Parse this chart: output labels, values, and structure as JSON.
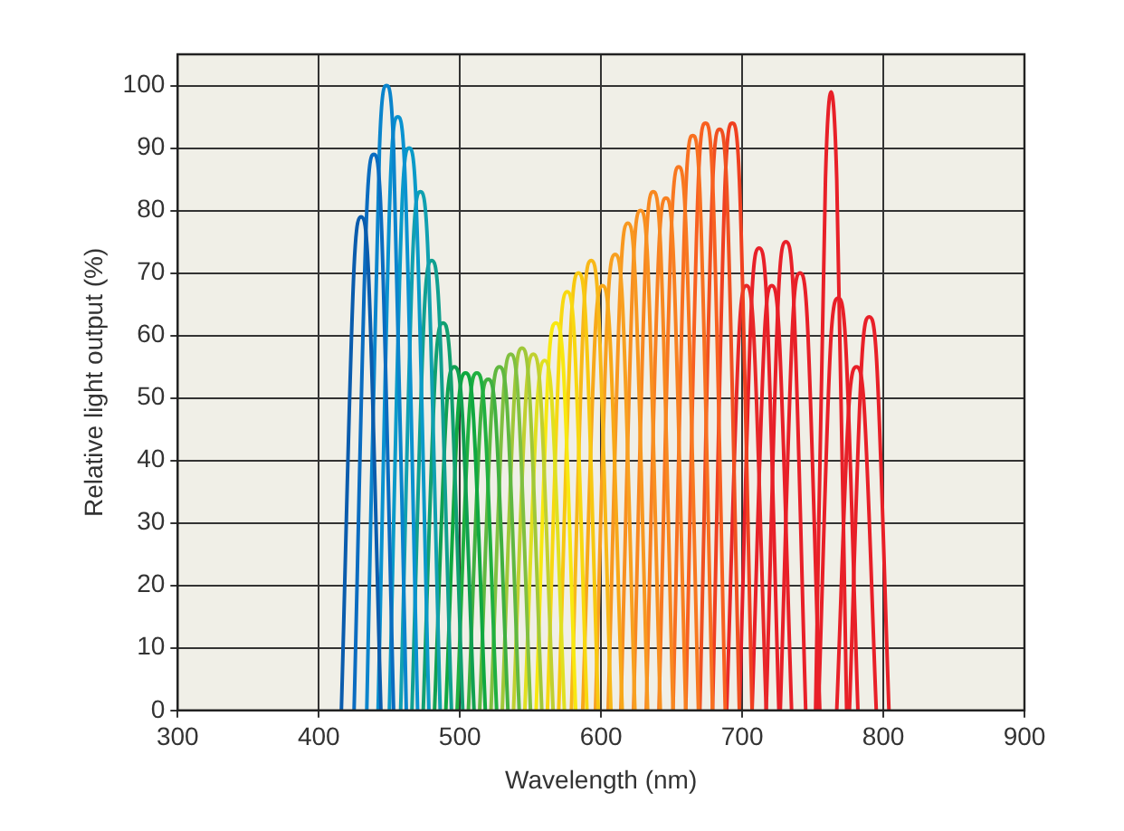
{
  "chart_data": {
    "type": "line",
    "xlabel": "Wavelength (nm)",
    "ylabel": "Relative light output (%)",
    "xlim": [
      300,
      900
    ],
    "xticks": [
      300,
      400,
      500,
      600,
      700,
      800,
      900
    ],
    "ylim": [
      0,
      105
    ],
    "yticks": [
      0,
      10,
      20,
      30,
      40,
      50,
      60,
      70,
      80,
      90,
      100
    ],
    "grid": true,
    "legend": false,
    "marker": "none",
    "line_style": "solid",
    "series": [
      {
        "color": "#0a5cad",
        "x": [
          416,
          425,
          430,
          435,
          444
        ],
        "values": [
          0,
          71,
          79,
          71,
          0
        ]
      },
      {
        "color": "#0a6cc0",
        "x": [
          425,
          434,
          439,
          444,
          453
        ],
        "values": [
          0,
          80,
          89,
          80,
          0
        ]
      },
      {
        "color": "#0a84cc",
        "x": [
          434,
          443,
          448,
          453,
          462
        ],
        "values": [
          0,
          90,
          100,
          90,
          0
        ]
      },
      {
        "color": "#0a92d0",
        "x": [
          442,
          451,
          456,
          461,
          470
        ],
        "values": [
          0,
          86,
          95,
          86,
          0
        ]
      },
      {
        "color": "#0a9ac8",
        "x": [
          450,
          459,
          464,
          469,
          478
        ],
        "values": [
          0,
          81,
          90,
          81,
          0
        ]
      },
      {
        "color": "#10a0b0",
        "x": [
          458,
          467,
          472,
          477,
          486
        ],
        "values": [
          0,
          75,
          83,
          75,
          0
        ]
      },
      {
        "color": "#10a090",
        "x": [
          466,
          475,
          480,
          485,
          494
        ],
        "values": [
          0,
          65,
          72,
          65,
          0
        ]
      },
      {
        "color": "#10a070",
        "x": [
          474,
          483,
          488,
          493,
          502
        ],
        "values": [
          0,
          56,
          62,
          56,
          0
        ]
      },
      {
        "color": "#10a050",
        "x": [
          482,
          491,
          496,
          501,
          510
        ],
        "values": [
          0,
          50,
          55,
          50,
          0
        ]
      },
      {
        "color": "#10a840",
        "x": [
          490,
          499,
          504,
          509,
          518
        ],
        "values": [
          0,
          49,
          54,
          49,
          0
        ]
      },
      {
        "color": "#20b040",
        "x": [
          498,
          507,
          512,
          517,
          526
        ],
        "values": [
          0,
          49,
          54,
          49,
          0
        ]
      },
      {
        "color": "#40b040",
        "x": [
          506,
          515,
          520,
          525,
          534
        ],
        "values": [
          0,
          48,
          53,
          48,
          0
        ]
      },
      {
        "color": "#60b840",
        "x": [
          514,
          523,
          528,
          533,
          542
        ],
        "values": [
          0,
          50,
          55,
          50,
          0
        ]
      },
      {
        "color": "#80c040",
        "x": [
          522,
          531,
          536,
          541,
          550
        ],
        "values": [
          0,
          51,
          57,
          51,
          0
        ]
      },
      {
        "color": "#a0c838",
        "x": [
          530,
          539,
          544,
          549,
          558
        ],
        "values": [
          0,
          52,
          58,
          52,
          0
        ]
      },
      {
        "color": "#c0d030",
        "x": [
          538,
          547,
          552,
          557,
          566
        ],
        "values": [
          0,
          51,
          57,
          51,
          0
        ]
      },
      {
        "color": "#e0e020",
        "x": [
          546,
          555,
          560,
          565,
          574
        ],
        "values": [
          0,
          50,
          56,
          50,
          0
        ]
      },
      {
        "color": "#f8e810",
        "x": [
          554,
          563,
          568,
          573,
          582
        ],
        "values": [
          0,
          56,
          62,
          56,
          0
        ]
      },
      {
        "color": "#f8d810",
        "x": [
          562,
          571,
          576,
          581,
          590
        ],
        "values": [
          0,
          60,
          67,
          60,
          0
        ]
      },
      {
        "color": "#f8c810",
        "x": [
          570,
          579,
          584,
          589,
          598
        ],
        "values": [
          0,
          63,
          70,
          63,
          0
        ]
      },
      {
        "color": "#f8b818",
        "x": [
          579,
          588,
          593,
          598,
          607
        ],
        "values": [
          0,
          65,
          72,
          65,
          0
        ]
      },
      {
        "color": "#f8a818",
        "x": [
          587,
          596,
          601,
          606,
          615
        ],
        "values": [
          0,
          61,
          68,
          61,
          0
        ]
      },
      {
        "color": "#f8a020",
        "x": [
          596,
          605,
          610,
          615,
          624
        ],
        "values": [
          0,
          66,
          73,
          66,
          0
        ]
      },
      {
        "color": "#f89820",
        "x": [
          605,
          614,
          619,
          624,
          633
        ],
        "values": [
          0,
          70,
          78,
          70,
          0
        ]
      },
      {
        "color": "#f89020",
        "x": [
          614,
          623,
          628,
          633,
          642
        ],
        "values": [
          0,
          72,
          80,
          72,
          0
        ]
      },
      {
        "color": "#f88820",
        "x": [
          623,
          632,
          637,
          642,
          651
        ],
        "values": [
          0,
          75,
          83,
          75,
          0
        ]
      },
      {
        "color": "#f88020",
        "x": [
          632,
          641,
          646,
          651,
          660
        ],
        "values": [
          0,
          74,
          82,
          74,
          0
        ]
      },
      {
        "color": "#f87820",
        "x": [
          641,
          650,
          655,
          660,
          669
        ],
        "values": [
          0,
          78,
          87,
          78,
          0
        ]
      },
      {
        "color": "#f87020",
        "x": [
          651,
          660,
          665,
          670,
          679
        ],
        "values": [
          0,
          83,
          92,
          83,
          0
        ]
      },
      {
        "color": "#f86020",
        "x": [
          660,
          669,
          674,
          679,
          688
        ],
        "values": [
          0,
          85,
          94,
          85,
          0
        ]
      },
      {
        "color": "#f05020",
        "x": [
          670,
          679,
          684,
          689,
          698
        ],
        "values": [
          0,
          84,
          93,
          84,
          0
        ]
      },
      {
        "color": "#f04020",
        "x": [
          679,
          688,
          693,
          698,
          707
        ],
        "values": [
          0,
          85,
          94,
          85,
          0
        ]
      },
      {
        "color": "#e82828",
        "x": [
          689,
          698,
          703,
          708,
          717
        ],
        "values": [
          0,
          61,
          68,
          61,
          0
        ]
      },
      {
        "color": "#e82028",
        "x": [
          698,
          707,
          712,
          717,
          726
        ],
        "values": [
          0,
          67,
          74,
          67,
          0
        ]
      },
      {
        "color": "#e82028",
        "x": [
          707,
          716,
          721,
          726,
          735
        ],
        "values": [
          0,
          61,
          68,
          61,
          0
        ]
      },
      {
        "color": "#e82028",
        "x": [
          717,
          726,
          731,
          736,
          745
        ],
        "values": [
          0,
          68,
          75,
          68,
          0
        ]
      },
      {
        "color": "#e82028",
        "x": [
          727,
          736,
          741,
          746,
          755
        ],
        "values": [
          0,
          63,
          70,
          63,
          0
        ]
      },
      {
        "color": "#e82028",
        "x": [
          752,
          759,
          763,
          767,
          774
        ],
        "values": [
          0,
          85,
          99,
          85,
          0
        ]
      },
      {
        "color": "#e82028",
        "x": [
          754,
          763,
          768,
          773,
          782
        ],
        "values": [
          0,
          60,
          66,
          60,
          0
        ]
      },
      {
        "color": "#e82028",
        "x": [
          767,
          776,
          781,
          786,
          795
        ],
        "values": [
          0,
          50,
          55,
          50,
          0
        ]
      },
      {
        "color": "#e82028",
        "x": [
          776,
          785,
          790,
          795,
          804
        ],
        "values": [
          0,
          57,
          63,
          57,
          0
        ]
      }
    ]
  }
}
